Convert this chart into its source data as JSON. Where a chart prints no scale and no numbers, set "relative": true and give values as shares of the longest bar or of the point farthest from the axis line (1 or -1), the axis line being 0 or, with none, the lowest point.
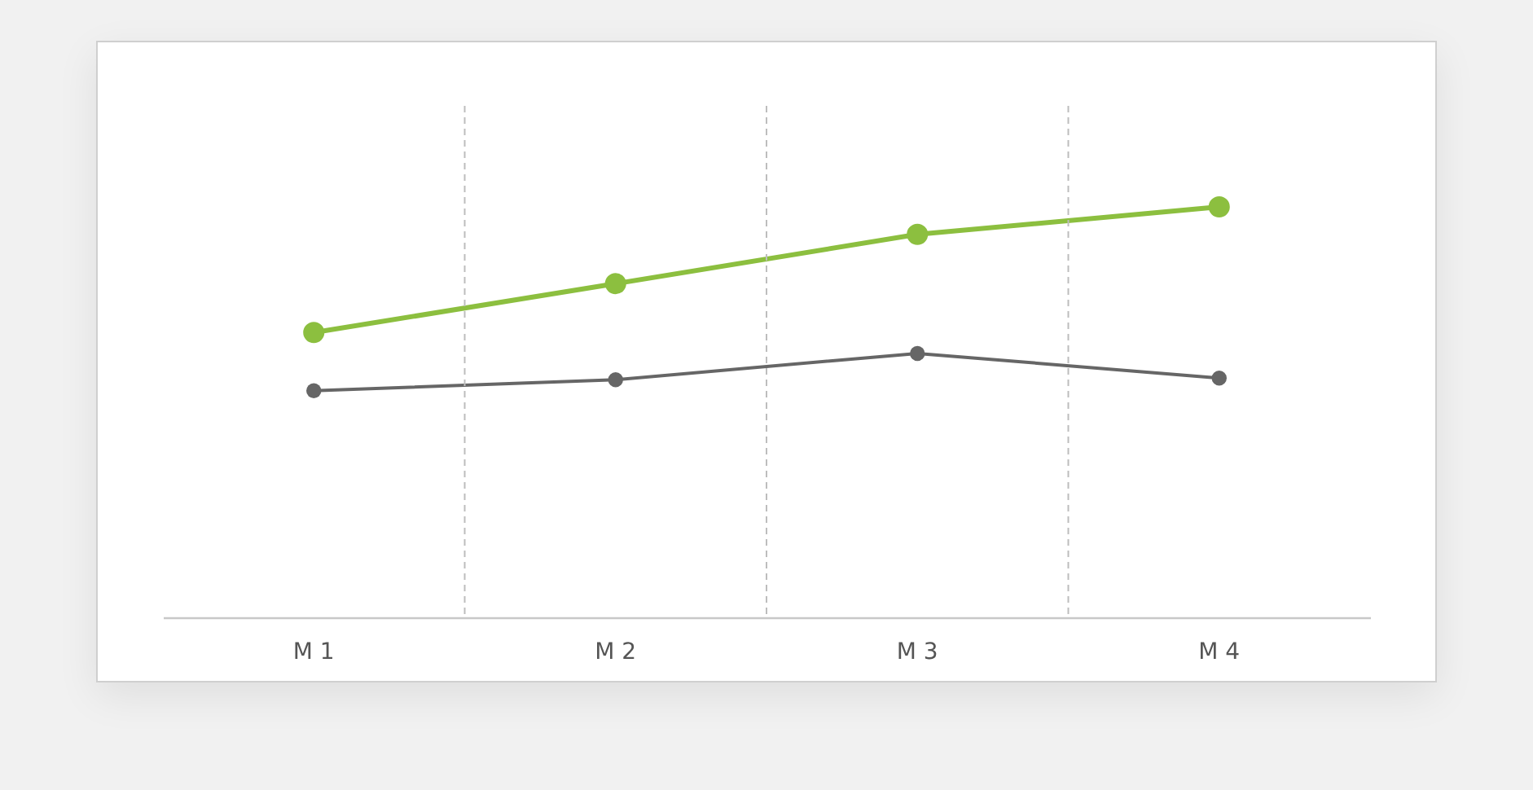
{
  "chart_data": {
    "type": "line",
    "relative": true,
    "categories": [
      "M 1",
      "M 2",
      "M 3",
      "M 4"
    ],
    "grid": "x",
    "marker": "circle",
    "line_style": "solid",
    "series": [
      {
        "color": "#8cbf3f",
        "values": [
          0.694,
          0.813,
          0.933,
          1
        ]
      },
      {
        "color": "#666666",
        "values": [
          0.552,
          0.579,
          0.643,
          0.583
        ]
      }
    ]
  }
}
